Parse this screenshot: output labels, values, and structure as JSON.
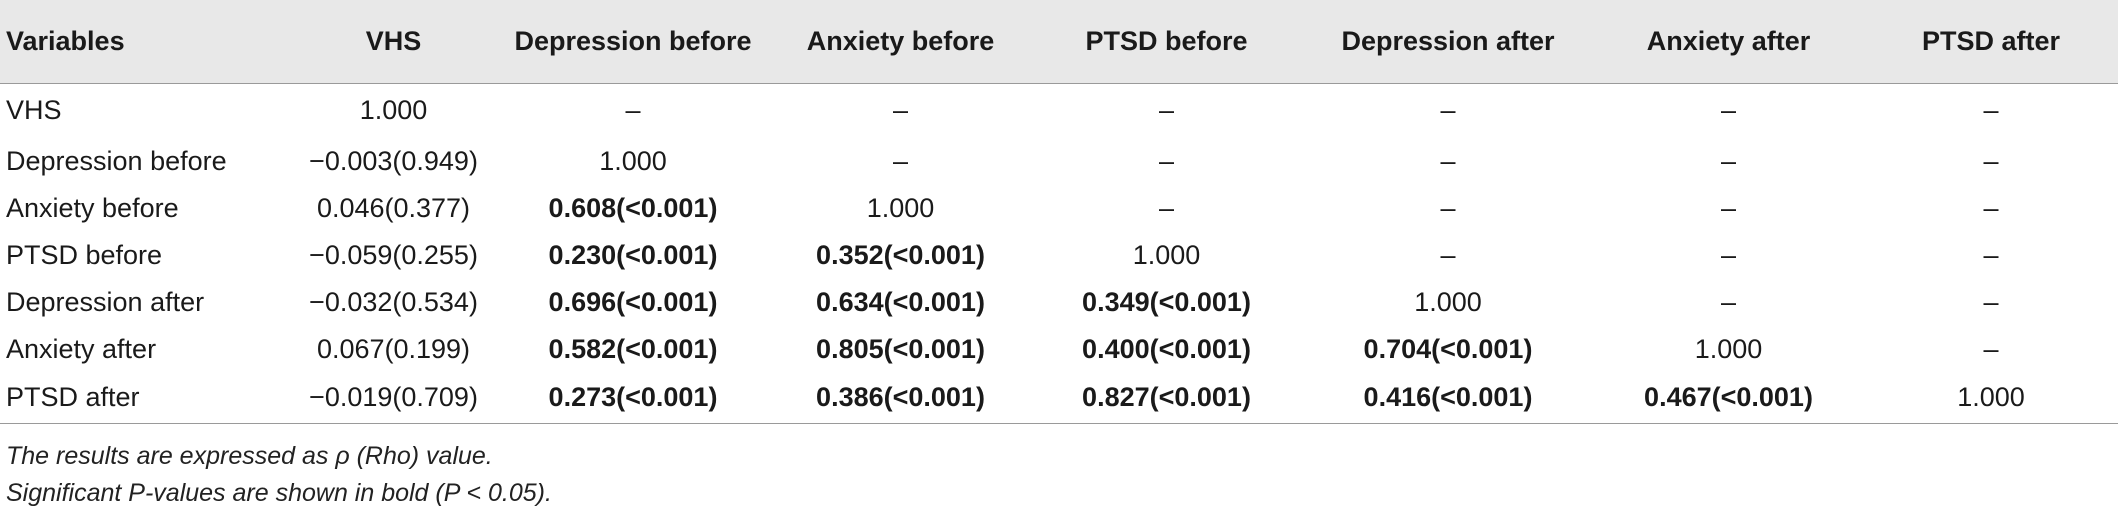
{
  "table": {
    "headers": [
      "Variables",
      "VHS",
      "Depression before",
      "Anxiety before",
      "PTSD before",
      "Depression after",
      "Anxiety after",
      "PTSD after"
    ],
    "rows": [
      {
        "label": "VHS",
        "cells": [
          {
            "v": "1.000",
            "b": false
          },
          {
            "v": "–",
            "b": false
          },
          {
            "v": "–",
            "b": false
          },
          {
            "v": "–",
            "b": false
          },
          {
            "v": "–",
            "b": false
          },
          {
            "v": "–",
            "b": false
          },
          {
            "v": "–",
            "b": false
          }
        ]
      },
      {
        "label": "Depression before",
        "cells": [
          {
            "v": "−0.003(0.949)",
            "b": false
          },
          {
            "v": "1.000",
            "b": false
          },
          {
            "v": "–",
            "b": false
          },
          {
            "v": "–",
            "b": false
          },
          {
            "v": "–",
            "b": false
          },
          {
            "v": "–",
            "b": false
          },
          {
            "v": "–",
            "b": false
          }
        ]
      },
      {
        "label": "Anxiety before",
        "cells": [
          {
            "v": "0.046(0.377)",
            "b": false
          },
          {
            "v": "0.608(<0.001)",
            "b": true
          },
          {
            "v": "1.000",
            "b": false
          },
          {
            "v": "–",
            "b": false
          },
          {
            "v": "–",
            "b": false
          },
          {
            "v": "–",
            "b": false
          },
          {
            "v": "–",
            "b": false
          }
        ]
      },
      {
        "label": "PTSD before",
        "cells": [
          {
            "v": "−0.059(0.255)",
            "b": false
          },
          {
            "v": "0.230(<0.001)",
            "b": true
          },
          {
            "v": "0.352(<0.001)",
            "b": true
          },
          {
            "v": "1.000",
            "b": false
          },
          {
            "v": "–",
            "b": false
          },
          {
            "v": "–",
            "b": false
          },
          {
            "v": "–",
            "b": false
          }
        ]
      },
      {
        "label": "Depression after",
        "cells": [
          {
            "v": "−0.032(0.534)",
            "b": false
          },
          {
            "v": "0.696(<0.001)",
            "b": true
          },
          {
            "v": "0.634(<0.001)",
            "b": true
          },
          {
            "v": "0.349(<0.001)",
            "b": true
          },
          {
            "v": "1.000",
            "b": false
          },
          {
            "v": "–",
            "b": false
          },
          {
            "v": "–",
            "b": false
          }
        ]
      },
      {
        "label": "Anxiety after",
        "cells": [
          {
            "v": "0.067(0.199)",
            "b": false
          },
          {
            "v": "0.582(<0.001)",
            "b": true
          },
          {
            "v": "0.805(<0.001)",
            "b": true
          },
          {
            "v": "0.400(<0.001)",
            "b": true
          },
          {
            "v": "0.704(<0.001)",
            "b": true
          },
          {
            "v": "1.000",
            "b": false
          },
          {
            "v": "–",
            "b": false
          }
        ]
      },
      {
        "label": "PTSD after",
        "cells": [
          {
            "v": "−0.019(0.709)",
            "b": false
          },
          {
            "v": "0.273(<0.001)",
            "b": true
          },
          {
            "v": "0.386(<0.001)",
            "b": true
          },
          {
            "v": "0.827(<0.001)",
            "b": true
          },
          {
            "v": "0.416(<0.001)",
            "b": true
          },
          {
            "v": "0.467(<0.001)",
            "b": true
          },
          {
            "v": "1.000",
            "b": false
          }
        ]
      }
    ]
  },
  "notes": {
    "line1": "The results are expressed as ρ (Rho) value.",
    "line2": "Significant P-values are shown in bold (P < 0.05)."
  }
}
